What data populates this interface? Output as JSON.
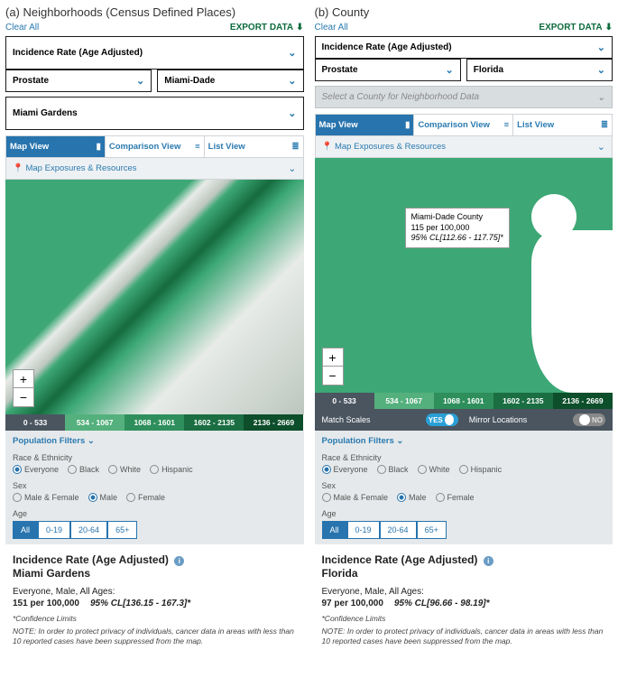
{
  "panels": {
    "a": {
      "title": "(a) Neighborhoods (Census Defined Places)",
      "clear": "Clear All",
      "export": "EXPORT DATA",
      "dd_metric": "Incidence Rate (Age Adjusted)",
      "dd_site": "Prostate",
      "dd_region": "Miami-Dade",
      "dd_sub": "Miami Gardens",
      "views": {
        "map": "Map View",
        "compare": "Comparison View",
        "list": "List View"
      },
      "mapexp": "Map Exposures & Resources",
      "legend": [
        {
          "label": "0 - 533",
          "color": "#4a5560"
        },
        {
          "label": "534 - 1067",
          "color": "#54b07c"
        },
        {
          "label": "1068 - 1601",
          "color": "#2e8f5c"
        },
        {
          "label": "1602 - 2135",
          "color": "#1a6e42"
        },
        {
          "label": "2136 - 2669",
          "color": "#0d4e2b"
        }
      ],
      "filters": {
        "head": "Population Filters",
        "race_label": "Race & Ethnicity",
        "race": [
          "Everyone",
          "Black",
          "White",
          "Hispanic"
        ],
        "race_sel": 0,
        "sex_label": "Sex",
        "sex": [
          "Male & Female",
          "Male",
          "Female"
        ],
        "sex_sel": 1,
        "age_label": "Age",
        "age": [
          "All",
          "0-19",
          "20-64",
          "65+"
        ],
        "age_sel": 0
      },
      "results": {
        "title": "Incidence Rate (Age Adjusted)",
        "loc": "Miami Gardens",
        "demo": "Everyone, Male, All Ages:",
        "val": "151 per 100,000",
        "cl": "95% CL[136.15 - 167.3]*",
        "foot": "*Confidence Limits",
        "note": "NOTE: In order to protect privacy of individuals, cancer data in areas with less than 10 reported cases have been suppressed from the map."
      }
    },
    "b": {
      "title": "(b) County",
      "clear": "Clear All",
      "export": "EXPORT DATA",
      "dd_metric": "Incidence Rate (Age Adjusted)",
      "dd_site": "Prostate",
      "dd_region": "Florida",
      "dd_sub_placeholder": "Select a County for Neighborhood Data",
      "views": {
        "map": "Map View",
        "compare": "Comparison View",
        "list": "List View"
      },
      "mapexp": "Map Exposures & Resources",
      "tooltip": {
        "l1": "Miami-Dade County",
        "l2": "115 per 100,000",
        "l3": "95% CL[112.66 - 117.75]*"
      },
      "legend": [
        {
          "label": "0 - 533",
          "color": "#4a5560"
        },
        {
          "label": "534 - 1067",
          "color": "#54b07c"
        },
        {
          "label": "1068 - 1601",
          "color": "#2e8f5c"
        },
        {
          "label": "1602 - 2135",
          "color": "#1a6e42"
        },
        {
          "label": "2136 - 2669",
          "color": "#0d4e2b"
        }
      ],
      "match": {
        "scales": "Match Scales",
        "scales_val": "YES",
        "mirror": "Mirror Locations",
        "mirror_val": "NO"
      },
      "filters": {
        "head": "Population Filters",
        "race_label": "Race & Ethnicity",
        "race": [
          "Everyone",
          "Black",
          "White",
          "Hispanic"
        ],
        "race_sel": 0,
        "sex_label": "Sex",
        "sex": [
          "Male & Female",
          "Male",
          "Female"
        ],
        "sex_sel": 1,
        "age_label": "Age",
        "age": [
          "All",
          "0-19",
          "20-64",
          "65+"
        ],
        "age_sel": 0
      },
      "results": {
        "title": "Incidence Rate (Age Adjusted)",
        "loc": "Florida",
        "demo": "Everyone, Male, All Ages:",
        "val": "97 per 100,000",
        "cl": "95% CL[96.66 - 98.19]*",
        "foot": "*Confidence Limits",
        "note": "NOTE: In order to protect privacy of individuals, cancer data in areas with less than 10 reported cases have been suppressed from the map."
      }
    }
  }
}
